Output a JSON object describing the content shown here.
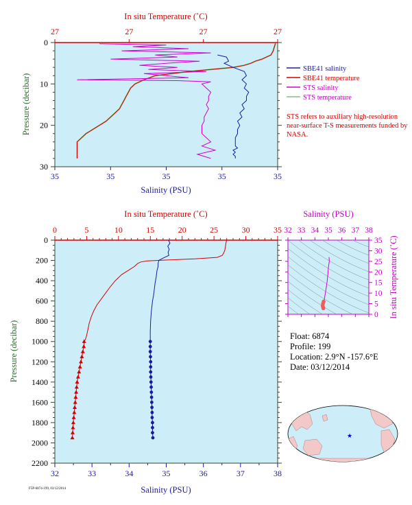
{
  "float_info": {
    "float_label": "Float:",
    "float_value": "6874",
    "profile_label": "Profile:",
    "profile_value": "199",
    "location_label": "Location:",
    "location_value": "2.9°N  -157.6°E",
    "date_label": "Date:",
    "date_value": "03/12/2014"
  },
  "note": "STS refers to auxiliary high-resolution near-surface T-S measurements funded by NASA.",
  "footer": "F5P-6874-199, 03/12/2014",
  "colors": {
    "sbe_salinity": "#1a1aa0",
    "sbe_temperature": "#d40000",
    "sts_salinity": "#d000d0",
    "sts_temperature": "#80c080",
    "plot_bg": "#cdeef8",
    "temp_axis": "#d40000",
    "ts_axis": "#c000c0",
    "pressure_axis": "#2e4a2e"
  },
  "chart_data": [
    {
      "id": "near_surface",
      "type": "line",
      "top_axis_label": "In situ Temperature (˚C)",
      "top_tick_labels": [
        "27",
        "27",
        "27",
        "27"
      ],
      "xlabel": "Salinity (PSU)",
      "bottom_tick_labels": [
        "35",
        "35",
        "35",
        "35",
        "35"
      ],
      "ylabel": "Pressure (decibar)",
      "ylim": [
        30,
        0
      ],
      "yticks": [
        0,
        10,
        20,
        30
      ],
      "x_range_relative": [
        0,
        1
      ],
      "legend": [
        "SBE41 salinity",
        "SBE41 temperature",
        "STS salinity",
        "STS temperature"
      ],
      "legend_position": "right",
      "series": [
        {
          "name": "SBE41 salinity",
          "color": "#1a1aa0",
          "x": [
            0.73,
            0.77,
            0.78,
            0.76,
            0.8,
            0.85,
            0.86,
            0.84,
            0.86,
            0.85,
            0.87,
            0.86,
            0.86,
            0.84,
            0.85,
            0.83,
            0.84,
            0.82,
            0.83,
            0.82,
            0.82,
            0.81,
            0.81,
            0.81,
            0.82,
            0.8,
            0.81,
            0.8,
            0.81,
            0.81
          ],
          "y": [
            3,
            3.5,
            4.5,
            5,
            6,
            7,
            8,
            9,
            10,
            11,
            12,
            13,
            14,
            15,
            16,
            17,
            18,
            19,
            20,
            21,
            22,
            23,
            24,
            25,
            25.5,
            26,
            26.5,
            27,
            27.5,
            28
          ]
        },
        {
          "name": "SBE41 temperature",
          "color": "#d40000",
          "x": [
            0.99,
            0.98,
            0.97,
            0.95,
            0.93,
            0.9,
            0.88,
            0.85,
            0.8,
            0.6,
            0.45,
            0.4,
            0.36,
            0.34,
            0.33,
            0.32,
            0.31,
            0.3,
            0.29,
            0.27,
            0.25,
            0.23,
            0.2,
            0.17,
            0.14,
            0.12,
            0.1,
            0.1
          ],
          "y": [
            0.2,
            2,
            3,
            3.5,
            4,
            4.5,
            5,
            5.5,
            6,
            7,
            8,
            9,
            10,
            11,
            12,
            13,
            14,
            15,
            16,
            17,
            18,
            19,
            20,
            21,
            22,
            23,
            24,
            28
          ]
        },
        {
          "name": "STS salinity",
          "color": "#d000d0",
          "x": [
            0.2,
            0.5,
            0.35,
            0.6,
            0.3,
            0.7,
            0.45,
            0.55,
            0.25,
            0.65,
            0.5,
            0.38,
            0.55,
            0.42,
            0.68,
            0.4,
            0.5,
            0.6,
            0.1,
            0.55,
            0.7,
            0.66,
            0.68,
            0.7,
            0.69,
            0.69,
            0.68,
            0.69,
            0.68,
            0.67,
            0.67,
            0.66,
            0.66,
            0.66,
            0.68,
            0.7,
            0.66,
            0.72,
            0.64,
            0.7
          ],
          "y": [
            0.3,
            0.6,
            1,
            1.5,
            2,
            2.5,
            3,
            3.5,
            4,
            4.5,
            5,
            5.5,
            6,
            6.5,
            7,
            7.5,
            8,
            8.5,
            9,
            9.2,
            9.5,
            10,
            11,
            12,
            13,
            14,
            15,
            16,
            17,
            18,
            19,
            20,
            21,
            22,
            23,
            24,
            25,
            26,
            27,
            28
          ]
        },
        {
          "name": "STS temperature",
          "color": "#80c080",
          "x": [
            0.99,
            0.98,
            0.97,
            0.95,
            0.93,
            0.9,
            0.88,
            0.85,
            0.8,
            0.6,
            0.45,
            0.4,
            0.36,
            0.34,
            0.33,
            0.32,
            0.31,
            0.3,
            0.29,
            0.27,
            0.25,
            0.23,
            0.2,
            0.17,
            0.14,
            0.12,
            0.1,
            0.1
          ],
          "y": [
            0.2,
            2,
            3,
            3.5,
            4,
            4.5,
            5,
            5.5,
            6,
            7,
            8,
            9,
            10,
            11,
            12,
            13,
            14,
            15,
            16,
            17,
            18,
            19,
            20,
            21,
            22,
            23,
            24,
            28
          ]
        }
      ]
    },
    {
      "id": "full_profile",
      "type": "line",
      "top_axis_label": "In situ Temperature (˚C)",
      "xlabel": "Salinity (PSU)",
      "ylabel": "Pressure (decibar)",
      "temp_range": [
        0,
        35
      ],
      "temp_ticks": [
        0,
        5,
        10,
        15,
        20,
        25,
        30,
        35
      ],
      "sal_range": [
        32,
        38
      ],
      "sal_ticks": [
        32,
        33,
        34,
        35,
        36,
        37,
        38
      ],
      "ylim": [
        2200,
        0
      ],
      "yticks": [
        0,
        200,
        400,
        600,
        800,
        1000,
        1200,
        1400,
        1600,
        1800,
        2000,
        2200
      ],
      "series": [
        {
          "name": "Temperature",
          "color": "#d40000",
          "axis": "temperature",
          "x": [
            27.0,
            26.9,
            26.8,
            26.7,
            26.5,
            26.3,
            25.5,
            22.0,
            18.0,
            14.5,
            13.5,
            13.0,
            12.5,
            11.5,
            10.5,
            9.5,
            8.7,
            8.0,
            7.3,
            6.6,
            6.1,
            5.7,
            5.4,
            5.2,
            5.0,
            4.8,
            4.6,
            4.55,
            4.4,
            4.25,
            4.1,
            3.95,
            3.8,
            3.65,
            3.5,
            3.35,
            3.2,
            3.05,
            2.9,
            2.75
          ],
          "y": [
            0,
            20,
            60,
            100,
            130,
            150,
            170,
            185,
            195,
            205,
            215,
            230,
            260,
            300,
            340,
            400,
            460,
            520,
            580,
            640,
            700,
            760,
            820,
            880,
            940,
            980,
            1000,
            1050,
            1100,
            1150,
            1200,
            1250,
            1300,
            1350,
            1400,
            1500,
            1600,
            1700,
            1800,
            1950
          ],
          "marker_from_pressure": 1000
        },
        {
          "name": "Salinity",
          "color": "#1a1aa0",
          "axis": "salinity",
          "x": [
            35.06,
            35.1,
            35.04,
            35.08,
            35.05,
            35.07,
            34.9,
            34.8,
            34.78,
            34.78,
            34.75,
            34.73,
            34.7,
            34.68,
            34.66,
            34.63,
            34.6,
            34.58,
            34.57,
            34.57,
            34.57,
            34.58,
            34.58,
            34.59,
            34.6,
            34.61,
            34.62,
            34.62,
            34.63,
            34.63,
            34.64
          ],
          "y": [
            0,
            30,
            60,
            90,
            120,
            150,
            180,
            200,
            230,
            260,
            300,
            360,
            420,
            480,
            540,
            600,
            700,
            800,
            900,
            1000,
            1100,
            1200,
            1300,
            1400,
            1500,
            1600,
            1700,
            1750,
            1800,
            1900,
            1950
          ],
          "marker_from_pressure": 1000
        }
      ]
    },
    {
      "id": "ts_diagram",
      "type": "scatter",
      "xlabel": "Salinity (PSU)",
      "ylabel": "In situ Temperature (˚C)",
      "xlim": [
        32,
        38
      ],
      "ylim": [
        0,
        35
      ],
      "xticks": [
        32,
        33,
        34,
        35,
        36,
        37,
        38
      ],
      "yticks": [
        0,
        5,
        10,
        15,
        20,
        25,
        30,
        35
      ],
      "series": [
        {
          "name": "T-S",
          "color": "#d000d0",
          "x": [
            35.05,
            35.07,
            35.0,
            34.95,
            34.9,
            34.85,
            34.8,
            34.75,
            34.7,
            34.65,
            34.6,
            34.58,
            34.6,
            34.63
          ],
          "y": [
            27,
            25,
            22,
            18,
            15,
            13,
            11,
            9,
            7,
            6,
            5,
            4,
            3.5,
            2.8
          ]
        }
      ]
    }
  ]
}
